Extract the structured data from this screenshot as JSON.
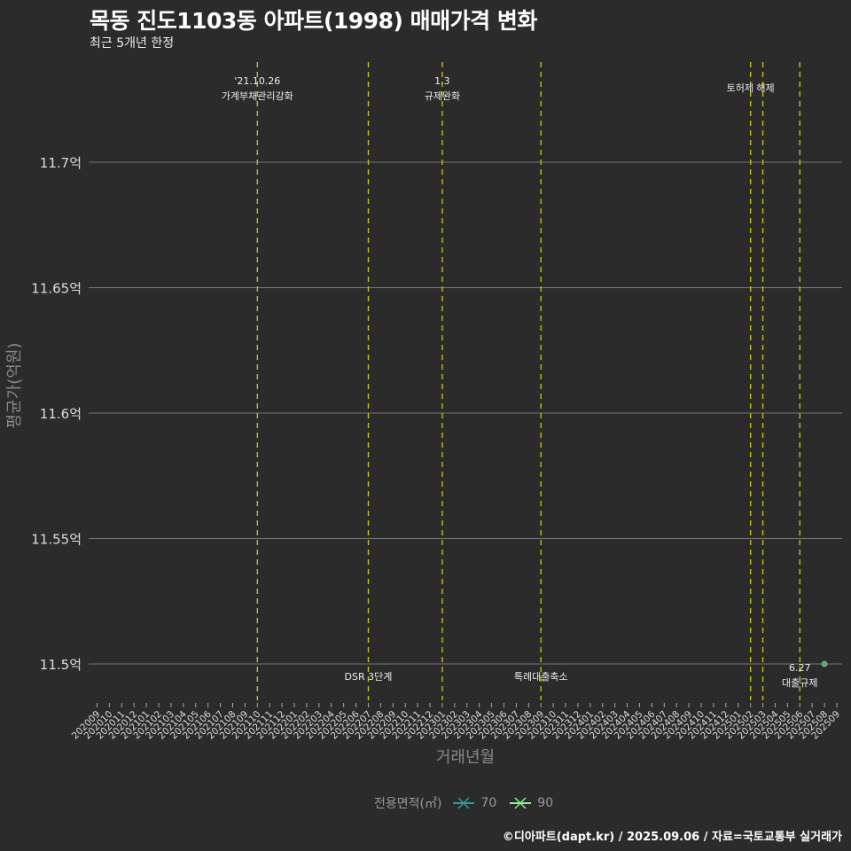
{
  "title": "목동 진도1103동 아파트(1998) 매매가격 변화",
  "subtitle": "최근 5개년 한정",
  "caption": "©디아파트(dapt.kr) / 2025.09.06 / 자료=국토교통부 실거래가",
  "legend": {
    "title": "전용면적(㎡)",
    "items": [
      {
        "label": "70",
        "color": "#2e9c9c"
      },
      {
        "label": "90",
        "color": "#90ee90"
      }
    ]
  },
  "chart_data": {
    "type": "line",
    "title": "목동 진도1103동 아파트(1998) 매매가격 변화",
    "xlabel": "거래년월",
    "ylabel": "평균가(억원)",
    "ylim": [
      11.485,
      11.74
    ],
    "yticks": [
      11.5,
      11.55,
      11.6,
      11.65,
      11.7
    ],
    "ytick_labels": [
      "11.5억",
      "11.55억",
      "11.6억",
      "11.65억",
      "11.7억"
    ],
    "x_start": "202009",
    "x_end": "202509",
    "grid": true,
    "series": [
      {
        "name": "90",
        "color": "#6faa6f",
        "points": [
          {
            "x": "202508",
            "y": 11.5
          }
        ]
      },
      {
        "name": "70",
        "color": "#2e9c9c",
        "points": []
      }
    ],
    "events": [
      {
        "month": "202110",
        "lines": [
          "'21.10.26",
          "가계부채관리강화"
        ],
        "pos": "top"
      },
      {
        "month": "202207",
        "lines": [
          "DSR 3단계"
        ],
        "pos": "bottom"
      },
      {
        "month": "202301",
        "lines": [
          "1.3",
          "규제완화"
        ],
        "pos": "top"
      },
      {
        "month": "202309",
        "lines": [
          "특례대출축소"
        ],
        "pos": "bottom"
      },
      {
        "month": "202502",
        "lines": [
          "토허제 해제"
        ],
        "pos": "top"
      },
      {
        "month": "202503",
        "lines": [],
        "pos": "top"
      },
      {
        "month": "202506",
        "lines": [
          "6.27",
          "대출규제"
        ],
        "pos": "bottom"
      }
    ],
    "event_line_color": "#cccc00"
  }
}
